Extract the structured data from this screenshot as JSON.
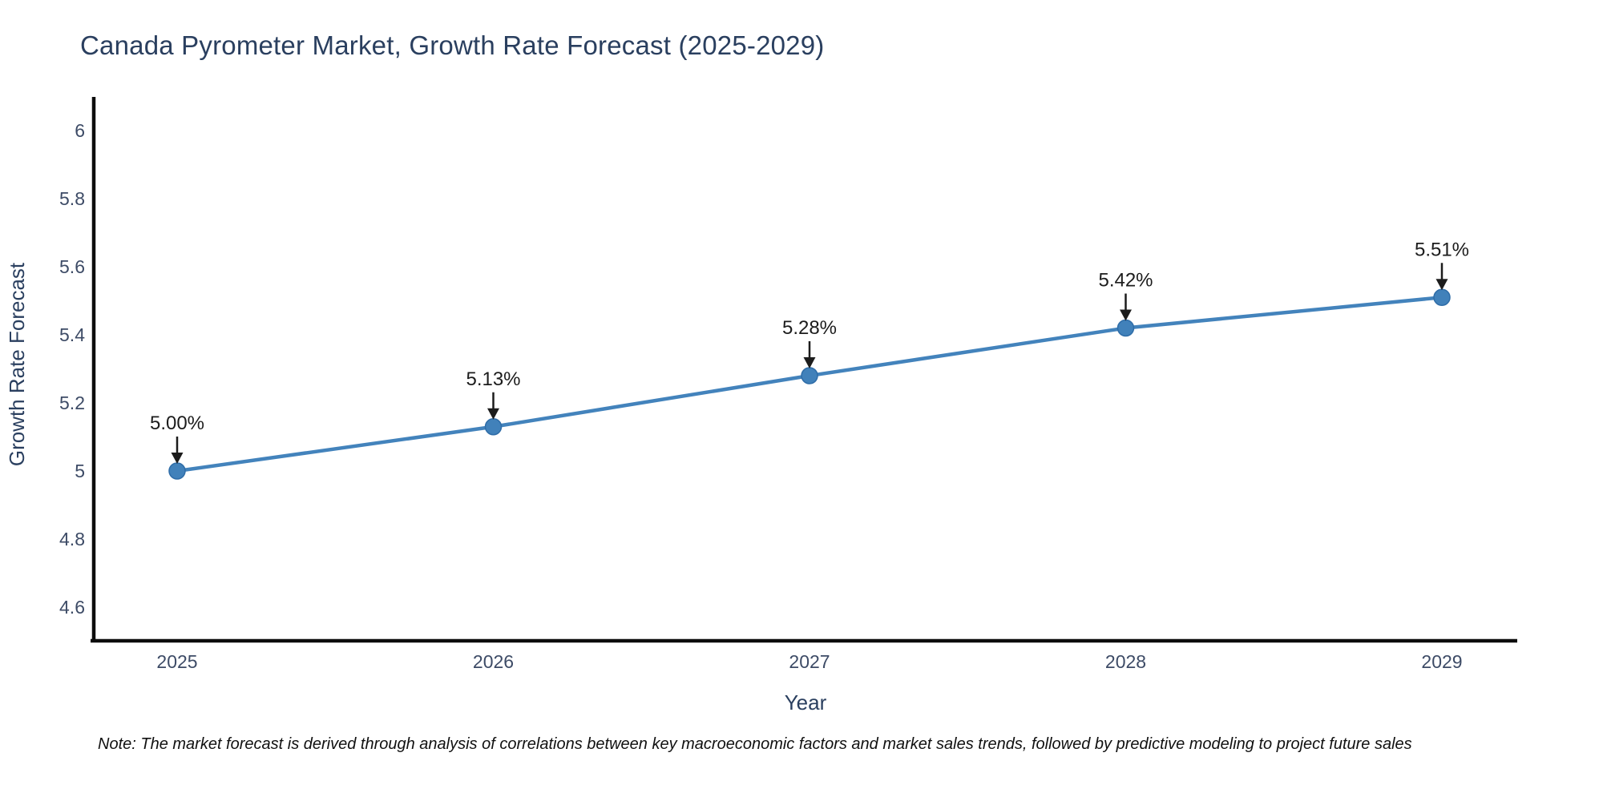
{
  "title": "Canada Pyrometer Market, Growth Rate Forecast (2025-2029)",
  "note": {
    "text": "Note: The market forecast is derived through analysis of correlations between key macroeconomic factors and market sales trends, followed by predictive modeling to project future sales"
  },
  "chart_data": {
    "type": "line",
    "title": "Canada Pyrometer Market, Growth Rate Forecast (2025-2029)",
    "xlabel": "Year",
    "ylabel": "Growth Rate Forecast",
    "categories": [
      2025,
      2026,
      2027,
      2028,
      2029
    ],
    "values": [
      5.0,
      5.13,
      5.28,
      5.42,
      5.51
    ],
    "point_labels": [
      "5.00%",
      "5.13%",
      "5.28%",
      "5.42%",
      "5.51%"
    ],
    "x_tick_labels": [
      "2025",
      "2026",
      "2027",
      "2028",
      "2029"
    ],
    "y_ticks": [
      6,
      5.8,
      5.6,
      5.4,
      5.2,
      5,
      4.8,
      4.6
    ],
    "y_tick_labels": [
      "6",
      "5.8",
      "5.6",
      "5.4",
      "5.2",
      "5",
      "4.8",
      "4.6"
    ],
    "ylim": [
      4.5,
      6.1
    ],
    "grid": false,
    "legend": "none",
    "line_color": "#4383bc",
    "marker_color": "#4181ba",
    "marker_edge_color": "#2f6da8",
    "axis_color": "#0d0d0d",
    "annotation_color": "#1c1c1c",
    "title_color": "#2a3f5f",
    "tick_color": "#3d4b66"
  }
}
